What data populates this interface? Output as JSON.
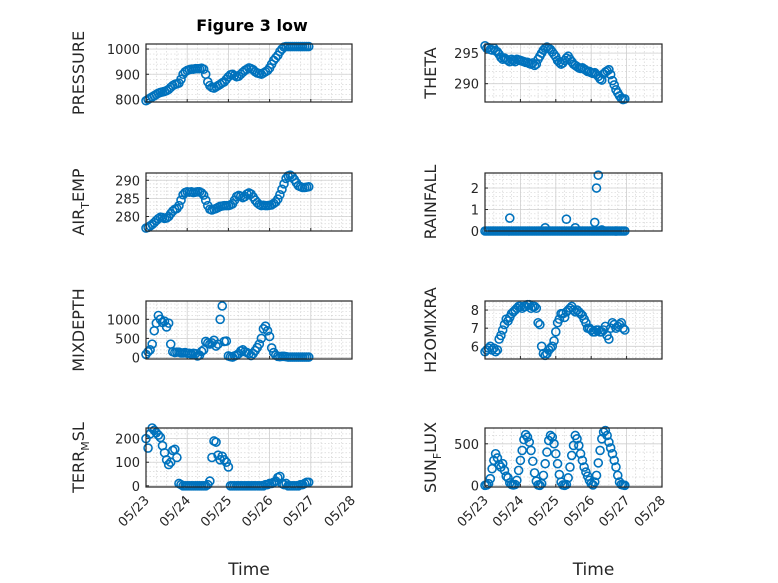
{
  "figure_title": "Figure 3 low",
  "colors": {
    "marker": "#0072BD",
    "axes": "#262626",
    "grid": "#d6d6d6"
  },
  "chart_data": [
    {
      "type": "scatter",
      "ylabel": "PRESSURE",
      "xlim": [
        0,
        5
      ],
      "ylim": [
        790,
        1020
      ],
      "yticks": [
        800,
        900,
        1000
      ],
      "x": [
        0,
        0.05,
        0.1,
        0.15,
        0.2,
        0.25,
        0.3,
        0.35,
        0.4,
        0.45,
        0.5,
        0.55,
        0.6,
        0.65,
        0.7,
        0.75,
        0.8,
        0.85,
        0.9,
        0.95,
        1.0,
        1.05,
        1.1,
        1.15,
        1.2,
        1.25,
        1.3,
        1.35,
        1.4,
        1.45,
        1.5,
        1.55,
        1.6,
        1.65,
        1.7,
        1.75,
        1.8,
        1.85,
        1.9,
        1.95,
        2.0,
        2.05,
        2.1,
        2.15,
        2.2,
        2.25,
        2.3,
        2.35,
        2.4,
        2.45,
        2.5,
        2.55,
        2.6,
        2.65,
        2.7,
        2.75,
        2.8,
        2.85,
        2.9,
        2.95,
        3.0,
        3.05,
        3.1,
        3.15,
        3.2,
        3.25,
        3.3,
        3.35,
        3.4,
        3.45,
        3.5,
        3.55,
        3.6,
        3.65,
        3.7,
        3.75,
        3.8,
        3.85,
        3.9,
        3.95
      ],
      "y": [
        795,
        800,
        805,
        810,
        815,
        820,
        825,
        828,
        830,
        832,
        835,
        840,
        848,
        855,
        860,
        862,
        865,
        880,
        900,
        910,
        915,
        918,
        920,
        920,
        922,
        922,
        922,
        924,
        920,
        900,
        870,
        855,
        848,
        845,
        850,
        855,
        860,
        866,
        870,
        880,
        890,
        898,
        900,
        895,
        890,
        892,
        900,
        908,
        915,
        920,
        925,
        922,
        918,
        910,
        905,
        903,
        900,
        905,
        910,
        915,
        925,
        940,
        955,
        965,
        975,
        990,
        1000,
        1008,
        1010,
        1010,
        1010,
        1010,
        1010,
        1010,
        1010,
        1010,
        1010,
        1010,
        1010,
        1010
      ]
    },
    {
      "type": "scatter",
      "ylabel": "THETA",
      "xlim": [
        0,
        5
      ],
      "ylim": [
        287,
        296.5
      ],
      "yticks": [
        290,
        295
      ],
      "x": [
        0,
        0.05,
        0.1,
        0.15,
        0.2,
        0.25,
        0.3,
        0.35,
        0.4,
        0.45,
        0.5,
        0.55,
        0.6,
        0.65,
        0.7,
        0.75,
        0.8,
        0.85,
        0.9,
        0.95,
        1.0,
        1.05,
        1.1,
        1.15,
        1.2,
        1.25,
        1.3,
        1.35,
        1.4,
        1.45,
        1.5,
        1.55,
        1.6,
        1.65,
        1.7,
        1.75,
        1.8,
        1.85,
        1.9,
        1.95,
        2.0,
        2.05,
        2.1,
        2.15,
        2.2,
        2.25,
        2.3,
        2.35,
        2.4,
        2.45,
        2.5,
        2.55,
        2.6,
        2.65,
        2.7,
        2.75,
        2.8,
        2.85,
        2.9,
        2.95,
        3.0,
        3.05,
        3.1,
        3.15,
        3.2,
        3.25,
        3.3,
        3.35,
        3.4,
        3.45,
        3.5,
        3.55,
        3.6,
        3.65,
        3.7,
        3.75,
        3.8,
        3.85,
        3.9,
        3.95
      ],
      "y": [
        296.2,
        295.8,
        295.9,
        295.6,
        295.5,
        295.8,
        295.4,
        295.2,
        294.8,
        294.3,
        294.0,
        294.2,
        294.0,
        293.8,
        293.6,
        294.0,
        293.8,
        293.6,
        294.0,
        293.9,
        293.8,
        293.7,
        293.6,
        293.5,
        293.5,
        293.3,
        293.2,
        293.4,
        293.0,
        293.2,
        294.0,
        294.5,
        295.0,
        295.5,
        295.8,
        296.0,
        295.8,
        295.6,
        295.2,
        294.8,
        294.4,
        293.8,
        293.5,
        293.2,
        293.4,
        293.8,
        294.2,
        294.5,
        294.0,
        293.6,
        293.2,
        293.0,
        292.8,
        292.6,
        292.5,
        292.6,
        292.4,
        292.2,
        292.0,
        292.0,
        291.8,
        291.7,
        291.8,
        291.5,
        291.2,
        290.8,
        290.6,
        291.6,
        291.9,
        292.1,
        292.3,
        291.5,
        290.5,
        289.8,
        289.0,
        288.5,
        288.0,
        287.6,
        287.4,
        287.5
      ]
    },
    {
      "type": "scatter",
      "ylabel": "AIR_TEMP",
      "xlim": [
        0,
        5
      ],
      "ylim": [
        276,
        292
      ],
      "yticks": [
        280,
        285,
        290
      ],
      "x": [
        0,
        0.05,
        0.1,
        0.15,
        0.2,
        0.25,
        0.3,
        0.35,
        0.4,
        0.45,
        0.5,
        0.55,
        0.6,
        0.65,
        0.7,
        0.75,
        0.8,
        0.85,
        0.9,
        0.95,
        1.0,
        1.05,
        1.1,
        1.15,
        1.2,
        1.25,
        1.3,
        1.35,
        1.4,
        1.45,
        1.5,
        1.55,
        1.6,
        1.65,
        1.7,
        1.75,
        1.8,
        1.85,
        1.9,
        1.95,
        2.0,
        2.05,
        2.1,
        2.15,
        2.2,
        2.25,
        2.3,
        2.35,
        2.4,
        2.45,
        2.5,
        2.55,
        2.6,
        2.65,
        2.7,
        2.75,
        2.8,
        2.85,
        2.9,
        2.95,
        3.0,
        3.05,
        3.1,
        3.15,
        3.2,
        3.25,
        3.3,
        3.35,
        3.4,
        3.45,
        3.5,
        3.55,
        3.6,
        3.65,
        3.7,
        3.75,
        3.8,
        3.85,
        3.9,
        3.95
      ],
      "y": [
        276.8,
        277.0,
        277.4,
        277.8,
        278.3,
        278.9,
        279.4,
        279.8,
        279.7,
        279.5,
        279.6,
        280.0,
        280.8,
        281.5,
        282.0,
        282.2,
        283.0,
        284.5,
        286.0,
        286.6,
        286.8,
        286.7,
        286.8,
        286.6,
        286.7,
        286.8,
        286.8,
        286.5,
        285.9,
        284.5,
        283.0,
        282.0,
        281.8,
        282.0,
        282.2,
        282.5,
        282.8,
        282.9,
        283.0,
        283.0,
        283.0,
        283.2,
        283.5,
        284.5,
        285.5,
        285.8,
        285.6,
        285.2,
        285.5,
        286.2,
        286.5,
        286.2,
        285.4,
        284.5,
        283.8,
        283.3,
        283.0,
        283.1,
        283.0,
        283.0,
        283.1,
        283.2,
        283.6,
        284.0,
        284.8,
        286.0,
        287.5,
        289.0,
        290.5,
        291.2,
        291.4,
        291.0,
        290.2,
        289.3,
        288.5,
        288.2,
        288.0,
        288.0,
        288.1,
        288.2
      ]
    },
    {
      "type": "scatter",
      "ylabel": "RAINFALL",
      "xlim": [
        0,
        5
      ],
      "ylim": [
        0,
        2.7
      ],
      "yticks": [
        0,
        1,
        2
      ],
      "x": [
        0,
        0.05,
        0.1,
        0.15,
        0.2,
        0.25,
        0.3,
        0.35,
        0.4,
        0.45,
        0.5,
        0.55,
        0.6,
        0.65,
        0.7,
        0.75,
        0.8,
        0.85,
        0.9,
        0.95,
        1.0,
        1.05,
        1.1,
        1.15,
        1.2,
        1.25,
        1.3,
        1.35,
        1.4,
        1.45,
        1.5,
        1.55,
        1.6,
        1.65,
        1.7,
        1.75,
        1.8,
        1.85,
        1.9,
        1.95,
        2.0,
        2.05,
        2.1,
        2.15,
        2.2,
        2.25,
        2.3,
        2.35,
        2.4,
        2.45,
        2.5,
        2.55,
        2.6,
        2.65,
        2.7,
        2.75,
        2.8,
        2.85,
        2.9,
        2.95,
        3.0,
        3.05,
        3.1,
        3.15,
        3.2,
        3.25,
        3.3,
        3.35,
        3.4,
        3.45,
        3.5,
        3.55,
        3.6,
        3.65,
        3.7,
        3.75,
        3.8,
        3.85,
        3.9,
        3.95,
        0.7,
        1.7,
        2.3,
        2.55,
        3.1,
        3.15,
        3.2,
        3.3,
        3.7
      ],
      "y": [
        0,
        0,
        0,
        0,
        0,
        0,
        0,
        0,
        0,
        0,
        0,
        0,
        0,
        0,
        0,
        0,
        0,
        0,
        0,
        0,
        0,
        0,
        0,
        0,
        0,
        0,
        0,
        0,
        0,
        0,
        0,
        0,
        0,
        0,
        0,
        0,
        0,
        0,
        0,
        0,
        0,
        0,
        0,
        0,
        0,
        0,
        0,
        0,
        0,
        0,
        0,
        0,
        0,
        0,
        0,
        0,
        0,
        0,
        0,
        0,
        0,
        0,
        0,
        0,
        0,
        0,
        0,
        0,
        0,
        0,
        0,
        0,
        0,
        0,
        0,
        0,
        0,
        0,
        0,
        0,
        0.6,
        0.15,
        0.55,
        0.15,
        0.4,
        2.0,
        2.6,
        0.05,
        0.0
      ]
    },
    {
      "type": "scatter",
      "ylabel": "MIXDEPTH",
      "xlim": [
        0,
        5
      ],
      "ylim": [
        -40,
        1480
      ],
      "yticks": [
        0,
        500,
        1000
      ],
      "x": [
        0,
        0.05,
        0.1,
        0.15,
        0.2,
        0.25,
        0.3,
        0.35,
        0.4,
        0.45,
        0.5,
        0.55,
        0.6,
        0.65,
        0.7,
        0.75,
        0.8,
        0.85,
        0.9,
        0.95,
        1.0,
        1.05,
        1.1,
        1.15,
        1.2,
        1.25,
        1.3,
        1.35,
        1.4,
        1.45,
        1.5,
        1.55,
        1.6,
        1.65,
        1.7,
        1.75,
        1.8,
        1.85,
        1.9,
        1.95,
        2.0,
        2.05,
        2.1,
        2.15,
        2.2,
        2.25,
        2.3,
        2.35,
        2.4,
        2.45,
        2.5,
        2.55,
        2.6,
        2.65,
        2.7,
        2.75,
        2.8,
        2.85,
        2.9,
        2.95,
        3.0,
        3.05,
        3.1,
        3.15,
        3.2,
        3.25,
        3.3,
        3.35,
        3.4,
        3.45,
        3.5,
        3.55,
        3.6,
        3.65,
        3.7,
        3.75,
        3.8,
        3.85,
        3.9,
        3.95
      ],
      "y": [
        80,
        150,
        200,
        350,
        700,
        900,
        1100,
        1000,
        920,
        950,
        800,
        900,
        350,
        150,
        130,
        140,
        140,
        120,
        120,
        130,
        110,
        110,
        90,
        110,
        100,
        40,
        60,
        160,
        200,
        420,
        380,
        350,
        380,
        450,
        300,
        350,
        1000,
        1350,
        420,
        430,
        40,
        20,
        10,
        40,
        60,
        100,
        170,
        200,
        150,
        130,
        100,
        50,
        100,
        180,
        260,
        350,
        500,
        750,
        820,
        700,
        550,
        250,
        130,
        60,
        30,
        20,
        30,
        30,
        20,
        10,
        10,
        10,
        10,
        10,
        10,
        10,
        10,
        10,
        10,
        10
      ]
    },
    {
      "type": "scatter",
      "ylabel": "H2OMIXRA",
      "xlim": [
        0,
        5
      ],
      "ylim": [
        5.3,
        8.5
      ],
      "yticks": [
        6,
        7,
        8
      ],
      "x": [
        0,
        0.05,
        0.1,
        0.15,
        0.2,
        0.25,
        0.3,
        0.35,
        0.4,
        0.45,
        0.5,
        0.55,
        0.6,
        0.65,
        0.7,
        0.75,
        0.8,
        0.85,
        0.9,
        0.95,
        1.0,
        1.05,
        1.1,
        1.15,
        1.2,
        1.25,
        1.3,
        1.35,
        1.4,
        1.45,
        1.5,
        1.55,
        1.6,
        1.65,
        1.7,
        1.75,
        1.8,
        1.85,
        1.9,
        1.95,
        2.0,
        2.05,
        2.1,
        2.15,
        2.2,
        2.25,
        2.3,
        2.35,
        2.4,
        2.45,
        2.5,
        2.55,
        2.6,
        2.65,
        2.7,
        2.75,
        2.8,
        2.85,
        2.9,
        2.95,
        3.0,
        3.05,
        3.1,
        3.15,
        3.2,
        3.25,
        3.3,
        3.35,
        3.4,
        3.45,
        3.5,
        3.55,
        3.6,
        3.65,
        3.7,
        3.75,
        3.8,
        3.85,
        3.9,
        3.95
      ],
      "y": [
        5.7,
        5.8,
        5.9,
        6.0,
        5.8,
        5.9,
        5.7,
        5.8,
        6.4,
        6.6,
        6.9,
        7.2,
        7.5,
        7.4,
        7.6,
        7.8,
        7.9,
        8.0,
        8.1,
        8.2,
        8.2,
        8.1,
        8.2,
        8.2,
        8.3,
        8.3,
        8.1,
        8.2,
        8.2,
        8.1,
        7.3,
        7.2,
        6.0,
        5.6,
        5.5,
        5.6,
        5.8,
        5.9,
        6.0,
        6.3,
        6.8,
        7.3,
        7.5,
        7.8,
        7.8,
        7.6,
        7.9,
        8.0,
        8.1,
        8.2,
        8.0,
        7.9,
        8.0,
        7.9,
        7.8,
        7.7,
        7.5,
        7.3,
        7.0,
        7.0,
        6.9,
        6.8,
        6.8,
        6.9,
        6.9,
        6.8,
        6.8,
        6.9,
        7.1,
        6.6,
        6.4,
        7.0,
        7.3,
        7.2,
        7.0,
        7.1,
        7.2,
        7.3,
        7.0,
        6.9
      ]
    },
    {
      "type": "scatter",
      "ylabel": "TERR_MSL",
      "xlim": [
        0,
        5
      ],
      "ylim": [
        -5,
        245
      ],
      "yticks": [
        0,
        100,
        200
      ],
      "xticklabels": [
        "05/23",
        "05/24",
        "05/25",
        "05/26",
        "05/27",
        "05/28"
      ],
      "xlabel": "Time",
      "x": [
        0,
        0.05,
        0.1,
        0.15,
        0.2,
        0.25,
        0.3,
        0.35,
        0.4,
        0.45,
        0.5,
        0.55,
        0.6,
        0.65,
        0.7,
        0.75,
        0.8,
        0.85,
        0.9,
        0.95,
        1.0,
        1.05,
        1.1,
        1.15,
        1.2,
        1.25,
        1.3,
        1.35,
        1.4,
        1.45,
        1.5,
        1.55,
        1.6,
        1.65,
        1.7,
        1.75,
        1.8,
        1.85,
        1.9,
        1.95,
        2.0,
        2.05,
        2.1,
        2.15,
        2.2,
        2.25,
        2.3,
        2.35,
        2.4,
        2.45,
        2.5,
        2.55,
        2.6,
        2.65,
        2.7,
        2.75,
        2.8,
        2.85,
        2.9,
        2.95,
        3.0,
        3.05,
        3.1,
        3.15,
        3.2,
        3.25,
        3.3,
        3.35,
        3.4,
        3.45,
        3.5,
        3.55,
        3.6,
        3.65,
        3.7,
        3.75,
        3.8,
        3.85,
        3.9,
        3.95
      ],
      "y": [
        200,
        160,
        220,
        245,
        235,
        225,
        215,
        205,
        170,
        140,
        110,
        90,
        100,
        150,
        155,
        120,
        10,
        5,
        0,
        0,
        0,
        0,
        0,
        0,
        0,
        0,
        0,
        0,
        0,
        0,
        5,
        20,
        120,
        190,
        185,
        130,
        110,
        125,
        110,
        100,
        80,
        0,
        0,
        0,
        0,
        0,
        0,
        0,
        0,
        0,
        0,
        0,
        0,
        0,
        0,
        0,
        0,
        0,
        5,
        5,
        10,
        10,
        15,
        20,
        35,
        40,
        10,
        5,
        10,
        0,
        0,
        0,
        0,
        0,
        0,
        5,
        5,
        10,
        15,
        15
      ]
    },
    {
      "type": "scatter",
      "ylabel": "SUN_FLUX",
      "xlim": [
        0,
        5
      ],
      "ylim": [
        -20,
        690
      ],
      "yticks": [
        0,
        500
      ],
      "xticklabels": [
        "05/23",
        "05/24",
        "05/25",
        "05/26",
        "05/27",
        "05/28"
      ],
      "xlabel": "Time",
      "x": [
        0,
        0.05,
        0.1,
        0.15,
        0.2,
        0.25,
        0.3,
        0.35,
        0.4,
        0.45,
        0.5,
        0.55,
        0.6,
        0.65,
        0.7,
        0.75,
        0.8,
        0.85,
        0.9,
        0.95,
        1.0,
        1.05,
        1.1,
        1.15,
        1.2,
        1.25,
        1.3,
        1.35,
        1.4,
        1.45,
        1.5,
        1.55,
        1.6,
        1.65,
        1.7,
        1.75,
        1.8,
        1.85,
        1.9,
        1.95,
        2.0,
        2.05,
        2.1,
        2.15,
        2.2,
        2.25,
        2.3,
        2.35,
        2.4,
        2.45,
        2.5,
        2.55,
        2.6,
        2.65,
        2.7,
        2.75,
        2.8,
        2.85,
        2.9,
        2.95,
        3.0,
        3.05,
        3.1,
        3.15,
        3.2,
        3.25,
        3.3,
        3.35,
        3.4,
        3.45,
        3.5,
        3.55,
        3.6,
        3.65,
        3.7,
        3.75,
        3.8,
        3.85,
        3.9,
        3.95
      ],
      "y": [
        0,
        5,
        20,
        80,
        200,
        300,
        380,
        330,
        250,
        220,
        260,
        180,
        110,
        90,
        30,
        10,
        5,
        10,
        60,
        180,
        300,
        420,
        550,
        610,
        580,
        520,
        420,
        290,
        150,
        50,
        5,
        0,
        20,
        120,
        260,
        400,
        540,
        600,
        580,
        500,
        380,
        260,
        130,
        40,
        5,
        0,
        10,
        90,
        220,
        360,
        480,
        600,
        560,
        480,
        380,
        300,
        220,
        160,
        110,
        60,
        20,
        5,
        40,
        120,
        270,
        420,
        560,
        640,
        660,
        600,
        520,
        450,
        380,
        300,
        220,
        120,
        40,
        10,
        5,
        0
      ]
    }
  ]
}
